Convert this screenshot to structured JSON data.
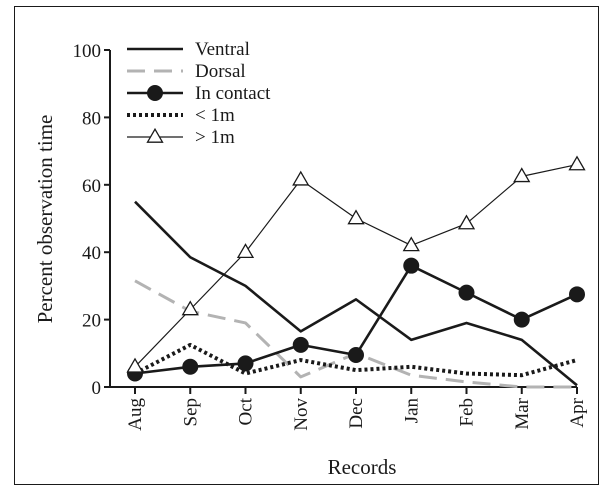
{
  "chart_data": {
    "type": "line",
    "title": "",
    "xlabel": "Records",
    "ylabel": "Percent observation time",
    "ylim": [
      0,
      100
    ],
    "yticks": [
      "0",
      "20",
      "40",
      "60",
      "80",
      "100"
    ],
    "categories": [
      "Aug",
      "Sep",
      "Oct",
      "Nov",
      "Dec",
      "Jan",
      "Feb",
      "Mar",
      "Apr"
    ],
    "grid": false,
    "legend_position": "top-left",
    "series": [
      {
        "name": "Ventral",
        "style": "solid-thick",
        "color": "#1a1a1a",
        "marker": "none",
        "values": [
          55,
          38.5,
          30,
          16.5,
          26,
          14,
          19,
          14,
          0.5
        ]
      },
      {
        "name": "Dorsal",
        "style": "dashed",
        "color": "#b3b3b3",
        "marker": "none",
        "values": [
          31.5,
          22.5,
          19,
          3,
          10,
          3.5,
          1.5,
          0,
          0
        ]
      },
      {
        "name": "In contact",
        "style": "solid-thick",
        "color": "#1a1a1a",
        "marker": "filled-circle",
        "values": [
          4,
          6,
          7,
          12.5,
          9.5,
          36,
          28,
          20,
          27.5
        ]
      },
      {
        "name": "< 1m",
        "style": "dotted",
        "color": "#1a1a1a",
        "marker": "none",
        "values": [
          4,
          12.5,
          4,
          8,
          5,
          6,
          4,
          3.5,
          8
        ]
      },
      {
        "name": "> 1m",
        "style": "solid-thin",
        "color": "#1a1a1a",
        "marker": "open-triangle",
        "values": [
          6,
          23,
          40,
          61.5,
          50,
          42,
          48.5,
          62.5,
          66
        ]
      }
    ]
  }
}
